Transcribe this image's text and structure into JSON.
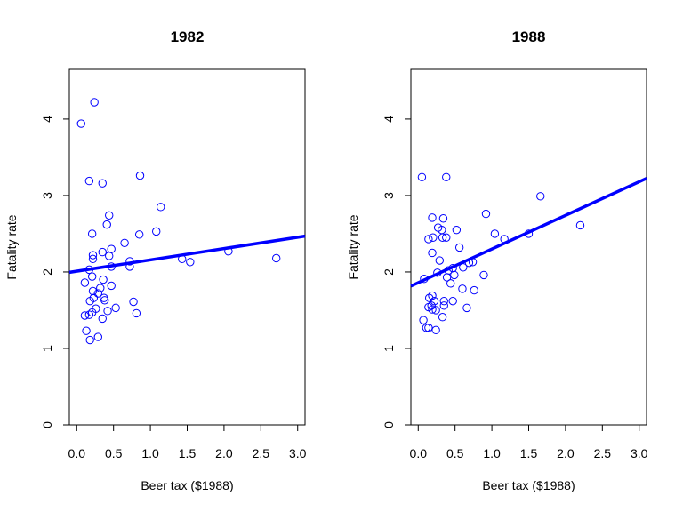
{
  "chart_data": [
    {
      "type": "scatter",
      "title": "1982",
      "xlabel": "Beer tax ($1988)",
      "ylabel": "Fatality rate",
      "xlim": [
        -0.1,
        3.1
      ],
      "ylim": [
        0,
        4.65
      ],
      "xticks": [
        "0.0",
        "0.5",
        "1.0",
        "1.5",
        "2.0",
        "2.5",
        "3.0"
      ],
      "yticks": [
        "0",
        "1",
        "2",
        "3",
        "4"
      ],
      "point_color": "#0000FF",
      "line_color": "#0000FF",
      "regression_line": {
        "intercept": 2.01,
        "slope": 0.148
      },
      "points": [
        [
          0.06,
          3.94
        ],
        [
          0.24,
          4.22
        ],
        [
          0.17,
          3.19
        ],
        [
          0.35,
          3.16
        ],
        [
          0.86,
          3.26
        ],
        [
          1.14,
          2.85
        ],
        [
          0.44,
          2.74
        ],
        [
          0.41,
          2.62
        ],
        [
          0.85,
          2.49
        ],
        [
          1.08,
          2.53
        ],
        [
          0.21,
          2.5
        ],
        [
          0.47,
          2.3
        ],
        [
          0.35,
          2.26
        ],
        [
          0.65,
          2.38
        ],
        [
          0.22,
          2.22
        ],
        [
          0.44,
          2.21
        ],
        [
          0.22,
          2.17
        ],
        [
          0.72,
          2.14
        ],
        [
          0.72,
          2.07
        ],
        [
          0.47,
          2.07
        ],
        [
          1.43,
          2.17
        ],
        [
          1.54,
          2.13
        ],
        [
          2.06,
          2.27
        ],
        [
          2.71,
          2.18
        ],
        [
          0.17,
          2.03
        ],
        [
          0.21,
          1.94
        ],
        [
          0.11,
          1.86
        ],
        [
          0.36,
          1.9
        ],
        [
          0.47,
          1.82
        ],
        [
          0.32,
          1.79
        ],
        [
          0.22,
          1.75
        ],
        [
          0.29,
          1.72
        ],
        [
          0.37,
          1.66
        ],
        [
          0.38,
          1.63
        ],
        [
          0.23,
          1.66
        ],
        [
          0.18,
          1.62
        ],
        [
          0.77,
          1.61
        ],
        [
          0.26,
          1.52
        ],
        [
          0.42,
          1.49
        ],
        [
          0.53,
          1.53
        ],
        [
          0.21,
          1.47
        ],
        [
          0.11,
          1.43
        ],
        [
          0.17,
          1.44
        ],
        [
          0.35,
          1.39
        ],
        [
          0.81,
          1.46
        ],
        [
          0.13,
          1.23
        ],
        [
          0.29,
          1.15
        ],
        [
          0.18,
          1.11
        ]
      ]
    },
    {
      "type": "scatter",
      "title": "1988",
      "xlabel": "Beer tax ($1988)",
      "ylabel": "Fatality rate",
      "xlim": [
        -0.1,
        3.1
      ],
      "ylim": [
        0,
        4.65
      ],
      "xticks": [
        "0.0",
        "0.5",
        "1.0",
        "1.5",
        "2.0",
        "2.5",
        "3.0"
      ],
      "yticks": [
        "0",
        "1",
        "2",
        "3",
        "4"
      ],
      "point_color": "#0000FF",
      "line_color": "#0000FF",
      "regression_line": {
        "intercept": 1.86,
        "slope": 0.44
      },
      "points": [
        [
          0.05,
          3.24
        ],
        [
          0.38,
          3.24
        ],
        [
          1.66,
          2.99
        ],
        [
          0.92,
          2.76
        ],
        [
          0.19,
          2.71
        ],
        [
          0.34,
          2.7
        ],
        [
          0.27,
          2.58
        ],
        [
          0.32,
          2.55
        ],
        [
          0.52,
          2.55
        ],
        [
          1.04,
          2.5
        ],
        [
          1.5,
          2.5
        ],
        [
          2.2,
          2.61
        ],
        [
          0.14,
          2.43
        ],
        [
          0.2,
          2.45
        ],
        [
          1.17,
          2.43
        ],
        [
          0.33,
          2.45
        ],
        [
          0.38,
          2.45
        ],
        [
          0.56,
          2.32
        ],
        [
          0.19,
          2.25
        ],
        [
          0.29,
          2.15
        ],
        [
          0.61,
          2.06
        ],
        [
          0.69,
          2.12
        ],
        [
          0.74,
          2.13
        ],
        [
          0.41,
          2.02
        ],
        [
          0.47,
          2.05
        ],
        [
          0.89,
          1.96
        ],
        [
          0.26,
          1.99
        ],
        [
          0.49,
          1.96
        ],
        [
          0.39,
          1.93
        ],
        [
          0.08,
          1.91
        ],
        [
          0.44,
          1.85
        ],
        [
          0.6,
          1.78
        ],
        [
          0.76,
          1.76
        ],
        [
          0.15,
          1.66
        ],
        [
          0.19,
          1.69
        ],
        [
          0.22,
          1.62
        ],
        [
          0.35,
          1.62
        ],
        [
          0.47,
          1.62
        ],
        [
          0.18,
          1.56
        ],
        [
          0.14,
          1.54
        ],
        [
          0.35,
          1.56
        ],
        [
          0.66,
          1.53
        ],
        [
          0.19,
          1.51
        ],
        [
          0.24,
          1.5
        ],
        [
          0.33,
          1.41
        ],
        [
          0.07,
          1.37
        ],
        [
          0.11,
          1.27
        ],
        [
          0.14,
          1.27
        ],
        [
          0.24,
          1.24
        ]
      ]
    }
  ]
}
